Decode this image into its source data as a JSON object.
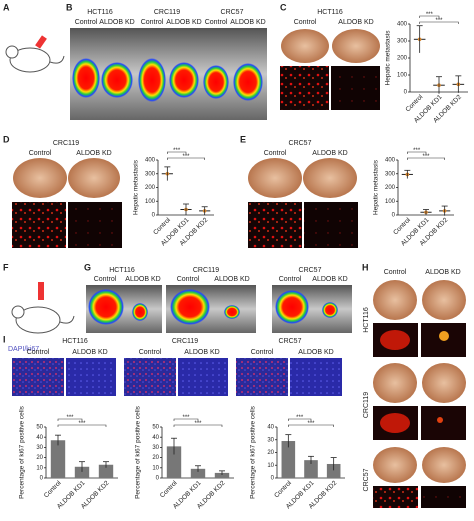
{
  "panels": {
    "A": {
      "letter": "A"
    },
    "B": {
      "letter": "B",
      "cell_lines": [
        "HCT116",
        "CRC119",
        "CRC57"
      ],
      "conditions": [
        "Control",
        "ALDOB KD"
      ]
    },
    "C": {
      "letter": "C",
      "title": "HCT116",
      "conditions": [
        "Control",
        "ALDOB KD"
      ]
    },
    "D": {
      "letter": "D",
      "title": "CRC119",
      "conditions": [
        "Control",
        "ALDOB KD"
      ]
    },
    "E": {
      "letter": "E",
      "title": "CRC57",
      "conditions": [
        "Control",
        "ALDOB KD"
      ]
    },
    "F": {
      "letter": "F"
    },
    "G": {
      "letter": "G",
      "cell_lines": [
        "HCT116",
        "CRC119",
        "CRC57"
      ],
      "conditions": [
        "Control",
        "ALDOB KD"
      ]
    },
    "H": {
      "letter": "H",
      "conditions": [
        "Control",
        "ALDOB KD"
      ],
      "cell_lines": [
        "HCT116",
        "CRC119",
        "CRC57"
      ]
    },
    "I": {
      "letter": "I",
      "stain": "DAPI/ki67",
      "cell_lines": [
        "HCT116",
        "CRC119",
        "CRC57"
      ],
      "conditions": [
        "Control",
        "ALDOB KD"
      ]
    }
  },
  "chart_data": [
    {
      "type": "dot",
      "ylabel": "Hepatic metastasis",
      "categories": [
        "Control",
        "ALDOB KD1",
        "ALDOB KD2"
      ],
      "values": [
        310,
        40,
        45
      ],
      "errors": [
        80,
        50,
        50
      ],
      "ylim": [
        0,
        400
      ],
      "yticks": [
        0,
        100,
        200,
        300,
        400
      ],
      "annotations": [
        "***",
        "***"
      ],
      "color": "#e08a2c"
    },
    {
      "type": "dot",
      "ylabel": "Hepatic metastasis",
      "categories": [
        "Control",
        "ALDOB KD1",
        "ALDOB KD2"
      ],
      "values": [
        300,
        40,
        30
      ],
      "errors": [
        50,
        40,
        30
      ],
      "ylim": [
        0,
        400
      ],
      "yticks": [
        0,
        100,
        200,
        300,
        400
      ],
      "annotations": [
        "***",
        "***"
      ],
      "color": "#e08a2c"
    },
    {
      "type": "dot",
      "ylabel": "Hepatic metastasis",
      "categories": [
        "Control",
        "ALDOB KD1",
        "ALDOB KD2"
      ],
      "values": [
        295,
        20,
        30
      ],
      "errors": [
        30,
        20,
        35
      ],
      "ylim": [
        0,
        400
      ],
      "yticks": [
        0,
        100,
        200,
        300,
        400
      ],
      "annotations": [
        "***",
        "***"
      ],
      "color": "#e08a2c"
    },
    {
      "type": "bar",
      "ylabel": "Percentage of ki67 positive cells",
      "categories": [
        "Control",
        "ALDOB KD1",
        "ALDOB KD2"
      ],
      "values": [
        37,
        11,
        13
      ],
      "errors": [
        5,
        5,
        3
      ],
      "ylim": [
        0,
        50
      ],
      "yticks": [
        0,
        10,
        20,
        30,
        40,
        50
      ],
      "annotations": [
        "***",
        "***"
      ],
      "color": "#777777"
    },
    {
      "type": "bar",
      "ylabel": "Percentage of ki67 positive cells",
      "categories": [
        "Control",
        "ALDOB KD1",
        "ALDOB KD2"
      ],
      "values": [
        31,
        9,
        5
      ],
      "errors": [
        8,
        3,
        2
      ],
      "ylim": [
        0,
        50
      ],
      "yticks": [
        0,
        10,
        20,
        30,
        40,
        50
      ],
      "annotations": [
        "***",
        "***"
      ],
      "color": "#777777"
    },
    {
      "type": "bar",
      "ylabel": "Percentage of ki67 positive cells",
      "categories": [
        "Control",
        "ALDOB KD1",
        "ALDOB KD2"
      ],
      "values": [
        29,
        14,
        11
      ],
      "errors": [
        5,
        3,
        5
      ],
      "ylim": [
        0,
        40
      ],
      "yticks": [
        0,
        10,
        20,
        30,
        40
      ],
      "annotations": [
        "***",
        "***"
      ],
      "color": "#777777"
    }
  ]
}
